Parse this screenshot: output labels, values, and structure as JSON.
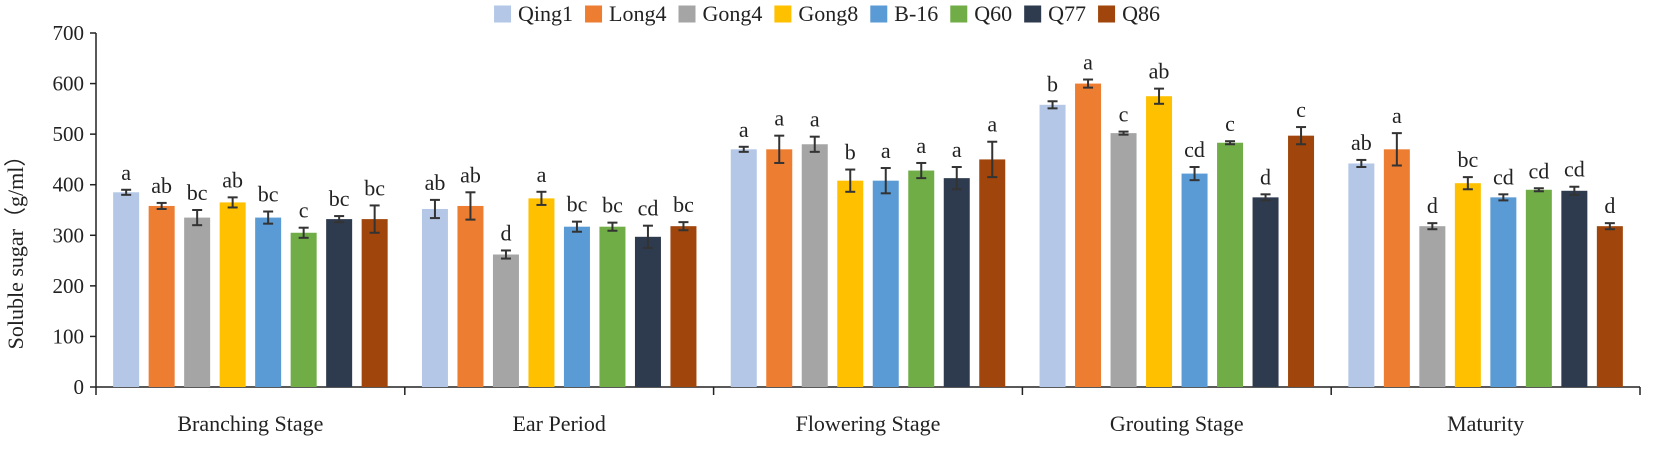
{
  "chart_data": {
    "type": "bar",
    "title": "",
    "xlabel": "",
    "ylabel": "Soluble sugar（g/ml）",
    "ylim": [
      0,
      700
    ],
    "yticks": [
      0,
      100,
      200,
      300,
      400,
      500,
      600,
      700
    ],
    "grid": false,
    "legend_position": "top",
    "categories": [
      "Branching Stage",
      "Ear Period",
      "Flowering Stage",
      "Grouting Stage",
      "Maturity"
    ],
    "series": [
      {
        "name": "Qing1",
        "color": "#b4c7e7",
        "values": [
          385,
          352,
          470,
          558,
          442
        ],
        "errors": [
          5,
          18,
          5,
          7,
          7
        ],
        "labels": [
          "a",
          "ab",
          "a",
          "b",
          "ab"
        ]
      },
      {
        "name": "Long4",
        "color": "#ed7d31",
        "values": [
          358,
          358,
          470,
          600,
          470
        ],
        "errors": [
          6,
          27,
          27,
          8,
          32
        ],
        "labels": [
          "ab",
          "ab",
          "a",
          "a",
          "a"
        ]
      },
      {
        "name": "Gong4",
        "color": "#a5a5a5",
        "values": [
          335,
          262,
          480,
          502,
          318
        ],
        "errors": [
          15,
          8,
          15,
          3,
          6
        ],
        "labels": [
          "bc",
          "d",
          "a",
          "c",
          "d"
        ]
      },
      {
        "name": "Gong8",
        "color": "#ffc000",
        "values": [
          365,
          373,
          408,
          575,
          403
        ],
        "errors": [
          10,
          13,
          22,
          15,
          12
        ],
        "labels": [
          "ab",
          "a",
          "b",
          "ab",
          "bc"
        ]
      },
      {
        "name": "B-16",
        "color": "#5b9bd5",
        "values": [
          335,
          317,
          408,
          422,
          375
        ],
        "errors": [
          12,
          10,
          25,
          13,
          6
        ],
        "labels": [
          "bc",
          "bc",
          "a",
          "cd",
          "cd"
        ]
      },
      {
        "name": "Q60",
        "color": "#70ad47",
        "values": [
          305,
          317,
          428,
          483,
          390
        ],
        "errors": [
          10,
          8,
          15,
          3,
          3
        ],
        "labels": [
          "c",
          "bc",
          "a",
          "c",
          "cd"
        ]
      },
      {
        "name": "Q77",
        "color": "#2e3b4e",
        "values": [
          332,
          297,
          413,
          375,
          388
        ],
        "errors": [
          6,
          22,
          22,
          6,
          8
        ],
        "labels": [
          "bc",
          "cd",
          "a",
          "d",
          "cd"
        ]
      },
      {
        "name": "Q86",
        "color": "#a0450b",
        "values": [
          332,
          318,
          450,
          497,
          318
        ],
        "errors": [
          27,
          8,
          35,
          17,
          6
        ],
        "labels": [
          "bc",
          "bc",
          "a",
          "c",
          "d"
        ]
      }
    ]
  }
}
